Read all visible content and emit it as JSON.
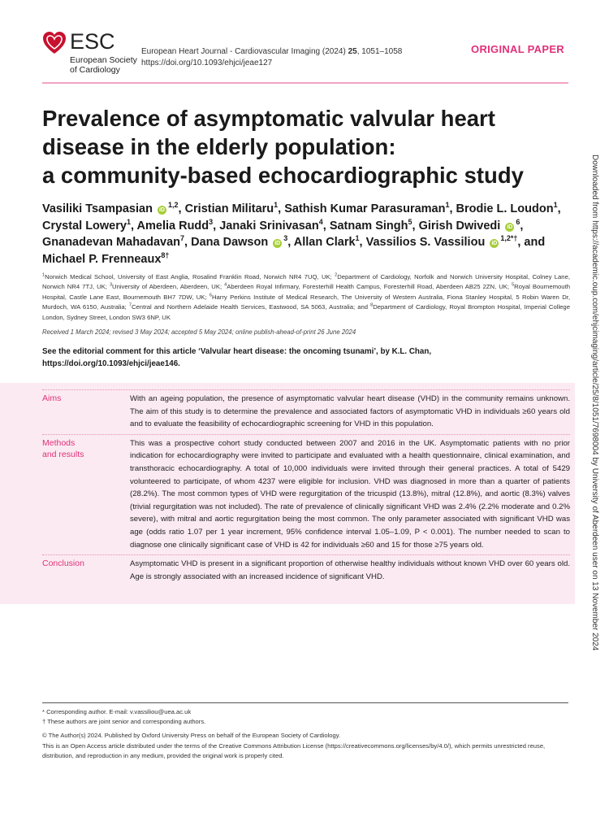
{
  "logo": {
    "text": "ESC",
    "society_line1": "European Society",
    "society_line2": "of Cardiology",
    "color": "#c8102e"
  },
  "journal": {
    "citation_prefix": "European Heart Journal - Cardiovascular Imaging (2024) ",
    "volume": "25",
    "pages": ", 1051–1058",
    "doi": "https://doi.org/10.1093/ehjci/jeae127"
  },
  "article_type": "ORIGINAL PAPER",
  "title_lines": [
    "Prevalence of asymptomatic valvular heart",
    "disease in the elderly population:",
    "a community-based echocardiographic study"
  ],
  "authors": [
    {
      "name": "Vasiliki Tsampasian",
      "orcid": true,
      "sup": "1,2",
      "sep": ", "
    },
    {
      "name": "Cristian Militaru",
      "sup": "1",
      "sep": ", "
    },
    {
      "name": "Sathish Kumar Parasuraman",
      "sup": "1",
      "sep": ", "
    },
    {
      "name": "Brodie L. Loudon",
      "sup": "1",
      "sep": ", "
    },
    {
      "name": "Crystal Lowery",
      "sup": "1",
      "sep": ", "
    },
    {
      "name": "Amelia Rudd",
      "sup": "3",
      "sep": ", "
    },
    {
      "name": "Janaki Srinivasan",
      "sup": "4",
      "sep": ", "
    },
    {
      "name": "Satnam Singh",
      "sup": "5",
      "sep": ", "
    },
    {
      "name": "Girish Dwivedi",
      "orcid": true,
      "sup": "6",
      "sep": ", "
    },
    {
      "name": "Gnanadevan Mahadavan",
      "sup": "7",
      "sep": ", "
    },
    {
      "name": "Dana Dawson",
      "orcid": true,
      "sup": "3",
      "sep": ", "
    },
    {
      "name": "Allan Clark",
      "sup": "1",
      "sep": ", "
    },
    {
      "name": "Vassilios S. Vassiliou",
      "orcid": true,
      "sup": "1,2*†",
      "sep": ", and "
    },
    {
      "name": "Michael P. Frenneaux",
      "sup": "8†",
      "sep": ""
    }
  ],
  "affiliations": [
    {
      "n": "1",
      "t": "Norwich Medical School, University of East Anglia, Rosalind Franklin Road, Norwich NR4 7UQ, UK; "
    },
    {
      "n": "2",
      "t": "Department of Cardiology, Norfolk and Norwich University Hospital, Colney Lane, Norwich NR4 7TJ, UK; "
    },
    {
      "n": "3",
      "t": "University of Aberdeen, Aberdeen, UK; "
    },
    {
      "n": "4",
      "t": "Aberdeen Royal Infirmary, Foresterhill Health Campus, Foresterhill Road, Aberdeen AB25 2ZN, UK; "
    },
    {
      "n": "5",
      "t": "Royal Bournemouth Hospital, Castle Lane East, Bournemouth BH7 7DW, UK; "
    },
    {
      "n": "6",
      "t": "Harry Perkins Institute of Medical Research, The University of Western Australia, Fiona Stanley Hospital, 5 Robin Waren Dr, Murdoch, WA 6150, Australia; "
    },
    {
      "n": "7",
      "t": "Central and Northern Adelaide Health Services, Eastwood, SA 5063, Australia; and "
    },
    {
      "n": "8",
      "t": "Department of Cardiology, Royal Brompton Hospital, Imperial College London, Sydney Street, London SW3 6NP, UK"
    }
  ],
  "received": "Received 1 March 2024; revised 3 May 2024; accepted 5 May 2024; online publish-ahead-of-print 26 June 2024",
  "editorial": "See the editorial comment for this article ‘Valvular heart disease: the oncoming tsunami’, by K.L. Chan, https://doi.org/10.1093/ehjci/jeae146.",
  "abstract": {
    "aims_label": "Aims",
    "aims": "With an ageing population, the presence of asymptomatic valvular heart disease (VHD) in the community remains unknown. The aim of this study is to determine the prevalence and associated factors of asymptomatic VHD in individuals ≥60 years old and to evaluate the feasibility of echocardiographic screening for VHD in this population.",
    "methods_label_1": "Methods",
    "methods_label_2": "and results",
    "methods": "This was a prospective cohort study conducted between 2007 and 2016 in the UK. Asymptomatic patients with no prior indication for echocardiography were invited to participate and evaluated with a health questionnaire, clinical examination, and transthoracic echocardiography. A total of 10,000 individuals were invited through their general practices. A total of 5429 volunteered to participate, of whom 4237 were eligible for inclusion. VHD was diagnosed in more than a quarter of patients (28.2%). The most common types of VHD were regurgitation of the tricuspid (13.8%), mitral (12.8%), and aortic (8.3%) valves (trivial regurgitation was not included). The rate of prevalence of clinically significant VHD was 2.4% (2.2% moderate and 0.2% severe), with mitral and aortic regurgitation being the most common. The only parameter associated with significant VHD was age (odds ratio 1.07 per 1 year increment, 95% confidence interval 1.05–1.09, P < 0.001). The number needed to scan to diagnose one clinically significant case of VHD is 42 for individuals ≥60 and 15 for those ≥75 years old.",
    "conclusion_label": "Conclusion",
    "conclusion": "Asymptomatic VHD is present in a significant proportion of otherwise healthy individuals without known VHD over 60 years old. Age is strongly associated with an increased incidence of significant VHD."
  },
  "side_note": "Downloaded from https://academic.oup.com/ehjcimaging/article/25/8/1051/7698004 by University of Aberdeen user on 13 November 2024",
  "footnotes": {
    "corresponding": "* Corresponding author. E-mail: v.vassiliou@uea.ac.uk",
    "joint": "† These authors are joint senior and corresponding authors.",
    "copyright": "© The Author(s) 2024. Published by Oxford University Press on behalf of the European Society of Cardiology.",
    "license": "This is an Open Access article distributed under the terms of the Creative Commons Attribution License (https://creativecommons.org/licenses/by/4.0/), which permits unrestricted reuse, distribution, and reproduction in any medium, provided the original work is properly cited."
  },
  "colors": {
    "accent": "#e0307a",
    "abstract_bg": "#fbeaf1",
    "orcid": "#a6ce39"
  }
}
